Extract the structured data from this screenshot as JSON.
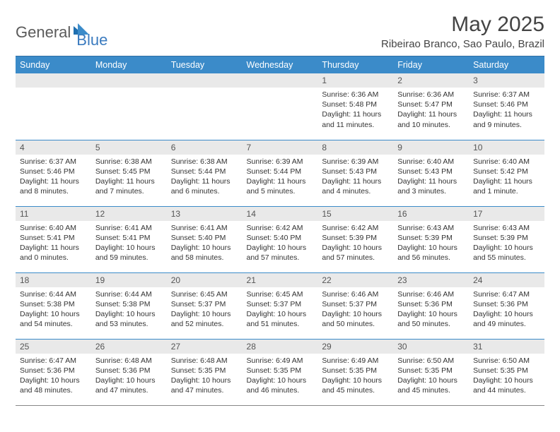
{
  "brand": {
    "part1": "General",
    "part2": "Blue"
  },
  "title": "May 2025",
  "location": "Ribeirao Branco, Sao Paulo, Brazil",
  "colors": {
    "header_bg": "#3b8bc9",
    "header_border": "#2f6fa3",
    "row_divider": "#3b8bc9",
    "daynum_bg": "#e9e9e9",
    "brand_blue": "#3b7bbf",
    "brand_gray": "#5a5a5a"
  },
  "day_headers": [
    "Sunday",
    "Monday",
    "Tuesday",
    "Wednesday",
    "Thursday",
    "Friday",
    "Saturday"
  ],
  "weeks": [
    [
      {
        "blank": true
      },
      {
        "blank": true
      },
      {
        "blank": true
      },
      {
        "blank": true
      },
      {
        "n": "1",
        "sunrise": "6:36 AM",
        "sunset": "5:48 PM",
        "daylight": "11 hours and 11 minutes."
      },
      {
        "n": "2",
        "sunrise": "6:36 AM",
        "sunset": "5:47 PM",
        "daylight": "11 hours and 10 minutes."
      },
      {
        "n": "3",
        "sunrise": "6:37 AM",
        "sunset": "5:46 PM",
        "daylight": "11 hours and 9 minutes."
      }
    ],
    [
      {
        "n": "4",
        "sunrise": "6:37 AM",
        "sunset": "5:46 PM",
        "daylight": "11 hours and 8 minutes."
      },
      {
        "n": "5",
        "sunrise": "6:38 AM",
        "sunset": "5:45 PM",
        "daylight": "11 hours and 7 minutes."
      },
      {
        "n": "6",
        "sunrise": "6:38 AM",
        "sunset": "5:44 PM",
        "daylight": "11 hours and 6 minutes."
      },
      {
        "n": "7",
        "sunrise": "6:39 AM",
        "sunset": "5:44 PM",
        "daylight": "11 hours and 5 minutes."
      },
      {
        "n": "8",
        "sunrise": "6:39 AM",
        "sunset": "5:43 PM",
        "daylight": "11 hours and 4 minutes."
      },
      {
        "n": "9",
        "sunrise": "6:40 AM",
        "sunset": "5:43 PM",
        "daylight": "11 hours and 3 minutes."
      },
      {
        "n": "10",
        "sunrise": "6:40 AM",
        "sunset": "5:42 PM",
        "daylight": "11 hours and 1 minute."
      }
    ],
    [
      {
        "n": "11",
        "sunrise": "6:40 AM",
        "sunset": "5:41 PM",
        "daylight": "11 hours and 0 minutes."
      },
      {
        "n": "12",
        "sunrise": "6:41 AM",
        "sunset": "5:41 PM",
        "daylight": "10 hours and 59 minutes."
      },
      {
        "n": "13",
        "sunrise": "6:41 AM",
        "sunset": "5:40 PM",
        "daylight": "10 hours and 58 minutes."
      },
      {
        "n": "14",
        "sunrise": "6:42 AM",
        "sunset": "5:40 PM",
        "daylight": "10 hours and 57 minutes."
      },
      {
        "n": "15",
        "sunrise": "6:42 AM",
        "sunset": "5:39 PM",
        "daylight": "10 hours and 57 minutes."
      },
      {
        "n": "16",
        "sunrise": "6:43 AM",
        "sunset": "5:39 PM",
        "daylight": "10 hours and 56 minutes."
      },
      {
        "n": "17",
        "sunrise": "6:43 AM",
        "sunset": "5:39 PM",
        "daylight": "10 hours and 55 minutes."
      }
    ],
    [
      {
        "n": "18",
        "sunrise": "6:44 AM",
        "sunset": "5:38 PM",
        "daylight": "10 hours and 54 minutes."
      },
      {
        "n": "19",
        "sunrise": "6:44 AM",
        "sunset": "5:38 PM",
        "daylight": "10 hours and 53 minutes."
      },
      {
        "n": "20",
        "sunrise": "6:45 AM",
        "sunset": "5:37 PM",
        "daylight": "10 hours and 52 minutes."
      },
      {
        "n": "21",
        "sunrise": "6:45 AM",
        "sunset": "5:37 PM",
        "daylight": "10 hours and 51 minutes."
      },
      {
        "n": "22",
        "sunrise": "6:46 AM",
        "sunset": "5:37 PM",
        "daylight": "10 hours and 50 minutes."
      },
      {
        "n": "23",
        "sunrise": "6:46 AM",
        "sunset": "5:36 PM",
        "daylight": "10 hours and 50 minutes."
      },
      {
        "n": "24",
        "sunrise": "6:47 AM",
        "sunset": "5:36 PM",
        "daylight": "10 hours and 49 minutes."
      }
    ],
    [
      {
        "n": "25",
        "sunrise": "6:47 AM",
        "sunset": "5:36 PM",
        "daylight": "10 hours and 48 minutes."
      },
      {
        "n": "26",
        "sunrise": "6:48 AM",
        "sunset": "5:36 PM",
        "daylight": "10 hours and 47 minutes."
      },
      {
        "n": "27",
        "sunrise": "6:48 AM",
        "sunset": "5:35 PM",
        "daylight": "10 hours and 47 minutes."
      },
      {
        "n": "28",
        "sunrise": "6:49 AM",
        "sunset": "5:35 PM",
        "daylight": "10 hours and 46 minutes."
      },
      {
        "n": "29",
        "sunrise": "6:49 AM",
        "sunset": "5:35 PM",
        "daylight": "10 hours and 45 minutes."
      },
      {
        "n": "30",
        "sunrise": "6:50 AM",
        "sunset": "5:35 PM",
        "daylight": "10 hours and 45 minutes."
      },
      {
        "n": "31",
        "sunrise": "6:50 AM",
        "sunset": "5:35 PM",
        "daylight": "10 hours and 44 minutes."
      }
    ]
  ],
  "labels": {
    "sunrise": "Sunrise:",
    "sunset": "Sunset:",
    "daylight": "Daylight:"
  }
}
